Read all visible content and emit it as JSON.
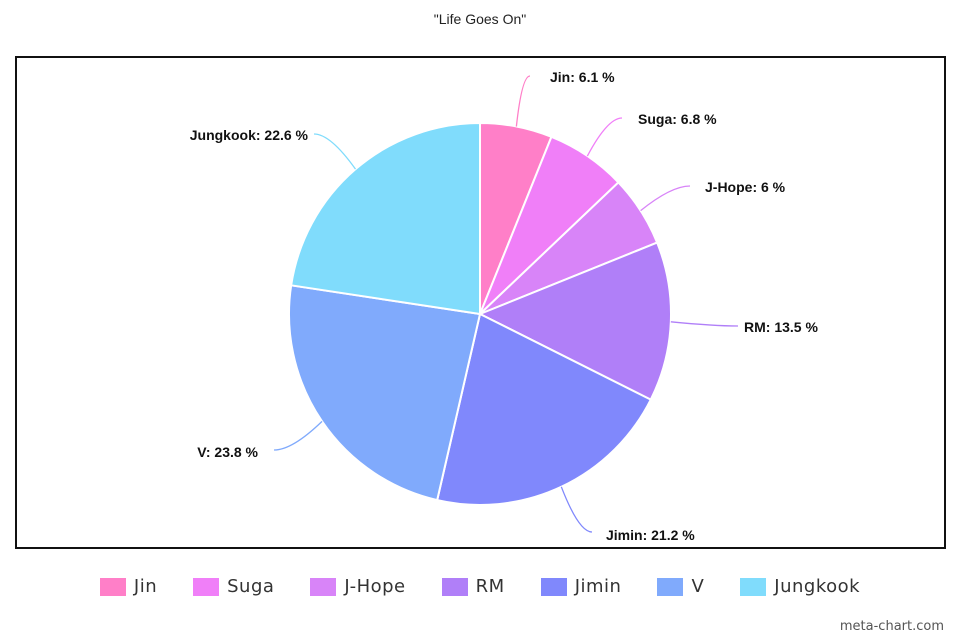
{
  "chart_data": {
    "type": "pie",
    "title": "\"Life Goes On\"",
    "slices": [
      {
        "name": "Jin",
        "value": 6.1,
        "label": "Jin: 6.1 %",
        "color": "#ff7fc8"
      },
      {
        "name": "Suga",
        "value": 6.8,
        "label": "Suga: 6.8 %",
        "color": "#f07ff8"
      },
      {
        "name": "J-Hope",
        "value": 6,
        "label": "J-Hope: 6 %",
        "color": "#d884f8"
      },
      {
        "name": "RM",
        "value": 13.5,
        "label": "RM: 13.5 %",
        "color": "#b07ff8"
      },
      {
        "name": "Jimin",
        "value": 21.2,
        "label": "Jimin: 21.2 %",
        "color": "#8088fc"
      },
      {
        "name": "V",
        "value": 23.8,
        "label": "V: 23.8 %",
        "color": "#80aafc"
      },
      {
        "name": "Jungkook",
        "value": 22.6,
        "label": "Jungkook: 22.6 %",
        "color": "#80dcfc"
      }
    ],
    "legend": {
      "position": "bottom"
    }
  },
  "watermark": "meta-chart.com"
}
